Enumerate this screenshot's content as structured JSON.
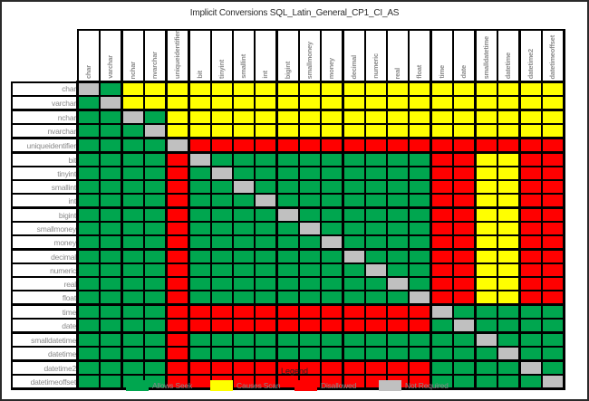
{
  "title": "Implicit Conversions SQL_Latin_General_CP1_CI_AS",
  "legend": {
    "title": "Legend",
    "items": [
      {
        "key": "G",
        "label": "Allows Seek",
        "color": "#00A64F"
      },
      {
        "key": "Y",
        "label": "Causes Scan",
        "color": "#FFFF00"
      },
      {
        "key": "R",
        "label": "Disallowed",
        "color": "#FF0000"
      },
      {
        "key": "N",
        "label": "Not Required",
        "color": "#C0C0C0"
      }
    ]
  },
  "chart_data": {
    "type": "heatmap",
    "title": "Implicit Conversions SQL_Latin_General_CP1_CI_AS",
    "legend": {
      "G": "Allows Seek",
      "Y": "Causes Scan",
      "R": "Disallowed",
      "N": "Not Required"
    },
    "colors": {
      "G": "#00A64F",
      "Y": "#FFFF00",
      "R": "#FF0000",
      "N": "#C0C0C0"
    },
    "col_labels": [
      "char",
      "varchar",
      "nchar",
      "nvarchar",
      "uniqueidentifier",
      "bit",
      "tinyint",
      "smallint",
      "int",
      "bigint",
      "smallmoney",
      "money",
      "decimal",
      "numeric",
      "real",
      "float",
      "time",
      "date",
      "smalldatetime",
      "datetime",
      "datetime2",
      "datetimeoffset"
    ],
    "row_labels": [
      "char",
      "varchar",
      "nchar",
      "nvarchar",
      "uniqueidentifier",
      "bit",
      "tinyint",
      "smallint",
      "int",
      "bigint",
      "smallmoney",
      "money",
      "decimal",
      "numeric",
      "real",
      "float",
      "time",
      "date",
      "smalldatetime",
      "datetime",
      "datetime2",
      "datetimeoffset"
    ],
    "matrix": [
      "NGYYYYYYYYYYYYYYYYYYYY",
      "GNYYYYYYYYYYYYYYYYYYYY",
      "GGNGYYYYYYYYYYYYYYYYYY",
      "GGGNYYYYYYYYYYYYYYYYYY",
      "GGGGNRRRRRRRRRRRRRRRRR",
      "GGGGRNGGGGGGGGGGRRYYRR",
      "GGGGRGNGGGGGGGGGRRYYRR",
      "GGGGRGGNGGGGGGGGRRYYRR",
      "GGGGRGGGNGGGGGGGRRYYRR",
      "GGGGRGGGGNGGGGGGRRYYRR",
      "GGGGRGGGGGNGGGGGRRYYRR",
      "GGGGRGGGGGGNGGGGRRYYRR",
      "GGGGRGGGGGGGNGGGRRYYRR",
      "GGGGRGGGGGGGGNGGRRYYRR",
      "GGGGRGGGGGGGGGNGRRYYRR",
      "GGGGRGGGGGGGGGGNRRYYRR",
      "GGGGRRRRRRRRRRRRNGGGGG",
      "GGGGRRRRRRRRRRRRGNGGGG",
      "GGGGRGGGGGGGGGGGGGNGGG",
      "GGGGRGGGGGGGGGGGGGGNGG",
      "GGGGRRRRRRRRRRRRGGGGNG",
      "GGGGRRRRRRRRRRRRGGGGGN"
    ]
  }
}
